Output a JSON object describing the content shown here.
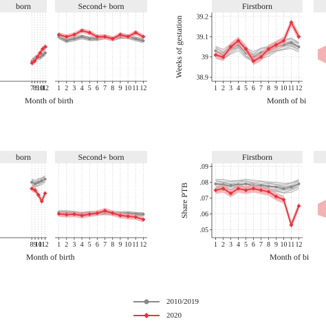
{
  "chart_data": [
    {
      "id": "top-left-second",
      "type": "line",
      "title": "Second+ born",
      "x": [
        1,
        2,
        3,
        4,
        5,
        6,
        7,
        8,
        9,
        10,
        11,
        12
      ],
      "xlim": [
        0.5,
        12.5
      ],
      "ylim": [
        38.88,
        39.22
      ],
      "series": [
        {
          "name": "2010/2019",
          "values": [
            39.1,
            39.08,
            39.09,
            39.1,
            39.09,
            39.09,
            39.1,
            39.09,
            39.1,
            39.1,
            39.09,
            39.08
          ]
        },
        {
          "name": "2020",
          "values": [
            39.11,
            39.1,
            39.11,
            39.13,
            39.12,
            39.1,
            39.1,
            39.09,
            39.11,
            39.1,
            39.12,
            39.1
          ]
        }
      ]
    },
    {
      "id": "top-right-first",
      "type": "line",
      "title": "Firstborn",
      "ylabel": "Weeks of gestation",
      "xlabel": "Month of birth",
      "x": [
        1,
        2,
        3,
        4,
        5,
        6,
        7,
        8,
        9,
        10,
        11,
        12
      ],
      "ylim": [
        38.88,
        39.22
      ],
      "yticks": [
        38.9,
        39,
        39.1,
        39.2
      ],
      "ytick_labels": [
        "38.9",
        "39",
        "39.1",
        "39.2"
      ],
      "series": [
        {
          "name": "2010/2019",
          "values": [
            39.03,
            39.01,
            39.04,
            39.06,
            39.02,
            39.0,
            39.02,
            39.03,
            39.05,
            39.06,
            39.07,
            39.05
          ]
        },
        {
          "name": "2020",
          "values": [
            39.01,
            39.0,
            39.05,
            39.08,
            39.04,
            38.98,
            39.0,
            39.04,
            39.06,
            39.08,
            39.17,
            39.1
          ]
        }
      ]
    },
    {
      "id": "bottom-left-second",
      "type": "line",
      "title": "Second+ born",
      "x": [
        1,
        2,
        3,
        4,
        5,
        6,
        7,
        8,
        9,
        10,
        11,
        12
      ],
      "ylim": [
        0.045,
        0.092
      ],
      "series": [
        {
          "name": "2010/2019",
          "values": [
            0.061,
            0.0608,
            0.0605,
            0.06,
            0.0605,
            0.0603,
            0.0608,
            0.0605,
            0.0603,
            0.0603,
            0.06,
            0.0598
          ]
        },
        {
          "name": "2020",
          "values": [
            0.06,
            0.0595,
            0.0598,
            0.059,
            0.0598,
            0.0605,
            0.062,
            0.0605,
            0.059,
            0.0585,
            0.058,
            0.0565
          ]
        }
      ]
    },
    {
      "id": "bottom-right-first",
      "type": "line",
      "title": "Firstborn",
      "ylabel": "Share PTB",
      "xlabel": "Month of birth",
      "x": [
        1,
        2,
        3,
        4,
        5,
        6,
        7,
        8,
        9,
        10,
        11,
        12
      ],
      "ylim": [
        0.045,
        0.092
      ],
      "yticks": [
        0.05,
        0.06,
        0.07,
        0.08,
        0.09
      ],
      "ytick_labels": [
        ".05",
        ".06",
        ".07",
        ".08",
        ".09"
      ],
      "series": [
        {
          "name": "2010/2019",
          "values": [
            0.079,
            0.0785,
            0.078,
            0.0785,
            0.079,
            0.078,
            0.078,
            0.0775,
            0.077,
            0.076,
            0.077,
            0.079
          ]
        },
        {
          "name": "2020",
          "values": [
            0.075,
            0.076,
            0.073,
            0.076,
            0.075,
            0.076,
            0.075,
            0.074,
            0.071,
            0.069,
            0.053,
            0.065
          ]
        }
      ]
    }
  ],
  "partial": {
    "top_left_title": "born",
    "top_left_xticks": [
      "7",
      "8",
      "9",
      "10",
      "11",
      "12"
    ],
    "top_left_values": [
      38.98,
      38.99,
      39.0,
      39.0,
      39.01,
      39.02
    ],
    "top_left_values_2020": [
      38.97,
      38.98,
      39.0,
      39.02,
      39.04,
      39.05
    ],
    "top_xlabel": "Month of birth",
    "top_right_xlabel": "Month of bi",
    "bottom_left_title": "born",
    "bottom_left_xticks": [
      "8",
      "9",
      "10",
      "11",
      "12"
    ],
    "bottom_left_values": [
      0.08,
      0.079,
      0.08,
      0.081,
      0.082
    ],
    "bottom_left_values_2020": [
      0.076,
      0.075,
      0.072,
      0.068,
      0.073
    ],
    "bottom_xlabel": "Month of birth",
    "bottom_right_xlabel": "Month of bi"
  },
  "legend": {
    "items": [
      {
        "label": "2010/2019",
        "color": "#888888"
      },
      {
        "label": "2020",
        "color": "#e8323c"
      }
    ]
  },
  "colors": {
    "baseline": "#888888",
    "covid": "#e8323c",
    "band": "#f0a0a4",
    "header_bg": "#ececec"
  }
}
